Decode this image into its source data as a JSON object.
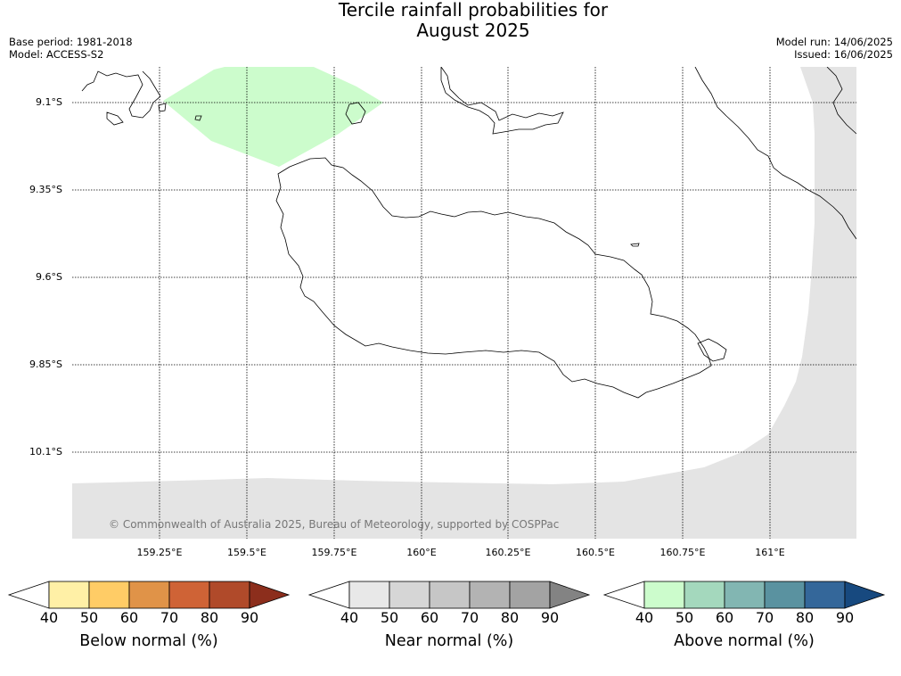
{
  "title_line1": "Tercile rainfall probabilities for",
  "title_line2": "August 2025",
  "base_period": "Base period: 1981-2018",
  "model": "Model: ACCESS-S2",
  "model_run": "Model run: 14/06/2025",
  "issued": "Issued: 16/06/2025",
  "lat_labels": [
    "9.1°S",
    "9.35°S",
    "9.6°S",
    "9.85°S",
    "10.1°S"
  ],
  "lon_labels": [
    "159.25°E",
    "159.5°E",
    "159.75°E",
    "160°E",
    "160.25°E",
    "160.5°E",
    "160.75°E",
    "161°E"
  ],
  "copyright": "© Commonwealth of Australia 2025, Bureau of Meteorology, supported by COSPPac",
  "colorbars": [
    {
      "title": "Below normal (%)",
      "ticks": [
        "40",
        "50",
        "60",
        "70",
        "80",
        "90"
      ],
      "colors": [
        "#ffffff",
        "#fff0a6",
        "#ffcc66",
        "#e09348",
        "#cf6336",
        "#b04a2a",
        "#8c2e1c"
      ]
    },
    {
      "title": "Near normal (%)",
      "ticks": [
        "40",
        "50",
        "60",
        "70",
        "80",
        "90"
      ],
      "colors": [
        "#ffffff",
        "#e8e8e8",
        "#d6d6d6",
        "#c6c6c6",
        "#b3b3b3",
        "#a3a3a3",
        "#838383"
      ]
    },
    {
      "title": "Above normal (%)",
      "ticks": [
        "40",
        "50",
        "60",
        "70",
        "80",
        "90"
      ],
      "colors": [
        "#ffffff",
        "#ccfccc",
        "#a4d8bd",
        "#82b6b2",
        "#5a92a0",
        "#34679a",
        "#17497f"
      ]
    }
  ],
  "map_colors": {
    "above_normal_fill": "#ccfccc",
    "near_normal_fill": "#e4e4e4",
    "coastline": "#000000",
    "grid": "#000000"
  }
}
